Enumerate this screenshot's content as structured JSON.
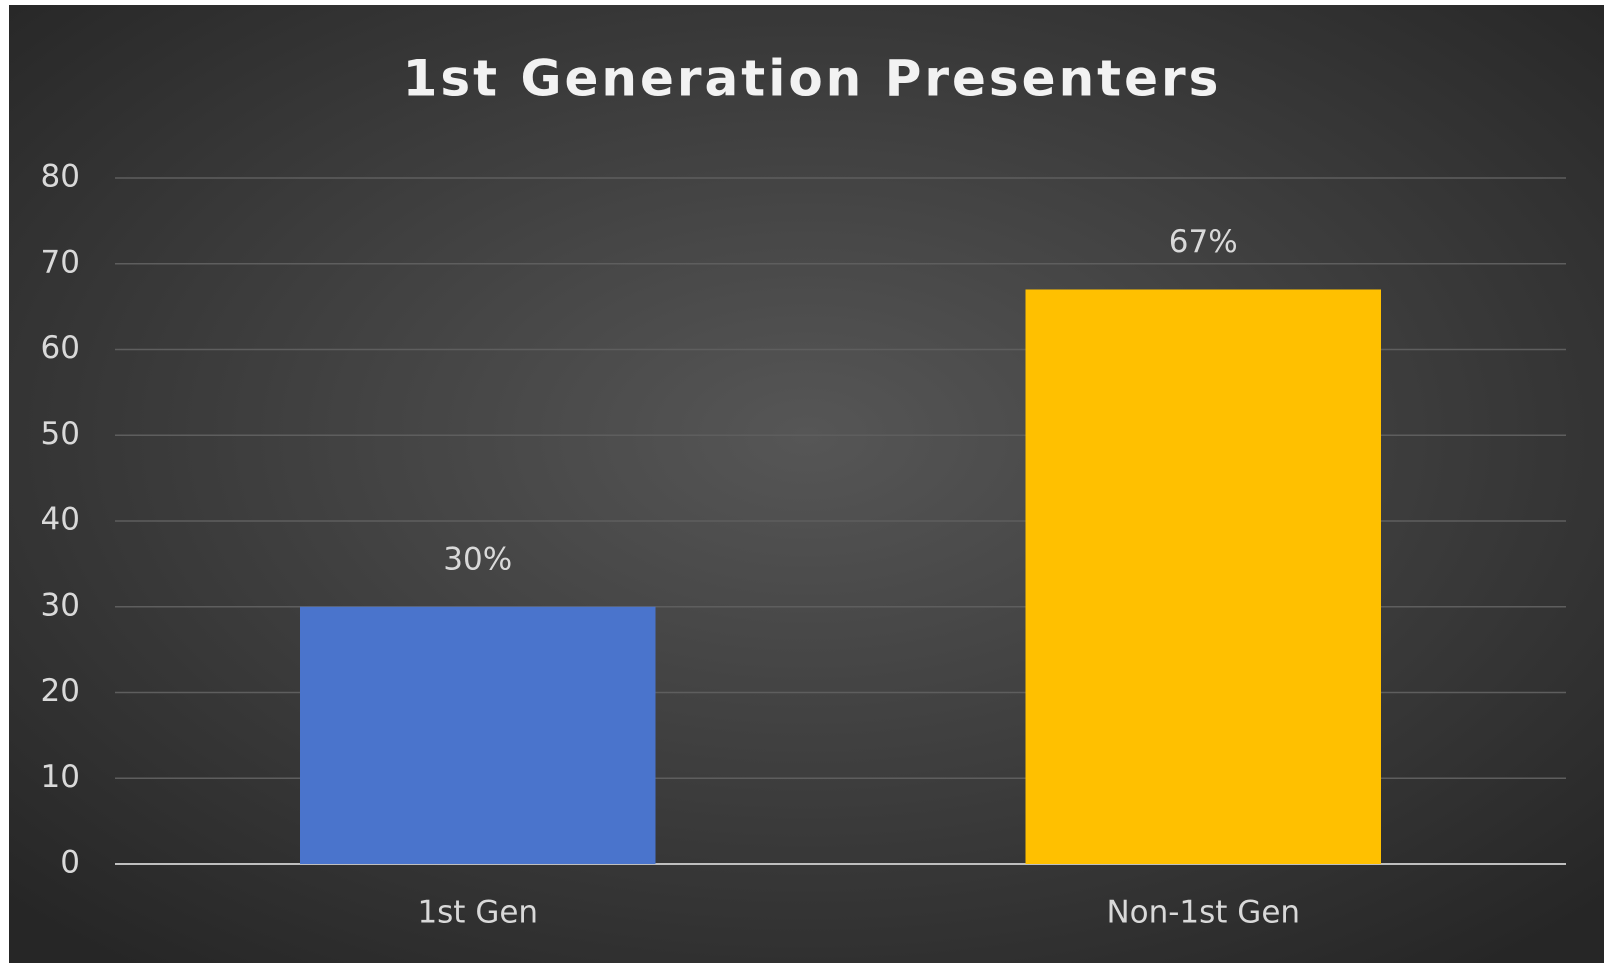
{
  "chart_data": {
    "type": "bar",
    "title": "1st Generation  Presenters",
    "categories": [
      "1st Gen",
      "Non-1st Gen"
    ],
    "values": [
      30,
      67
    ],
    "value_labels": [
      "30%",
      "67%"
    ],
    "colors": [
      "#4a74cc",
      "#ffc000"
    ],
    "ylim": [
      0,
      80
    ],
    "yticks": [
      0,
      10,
      20,
      30,
      40,
      50,
      60,
      70,
      80
    ],
    "grid": true
  }
}
